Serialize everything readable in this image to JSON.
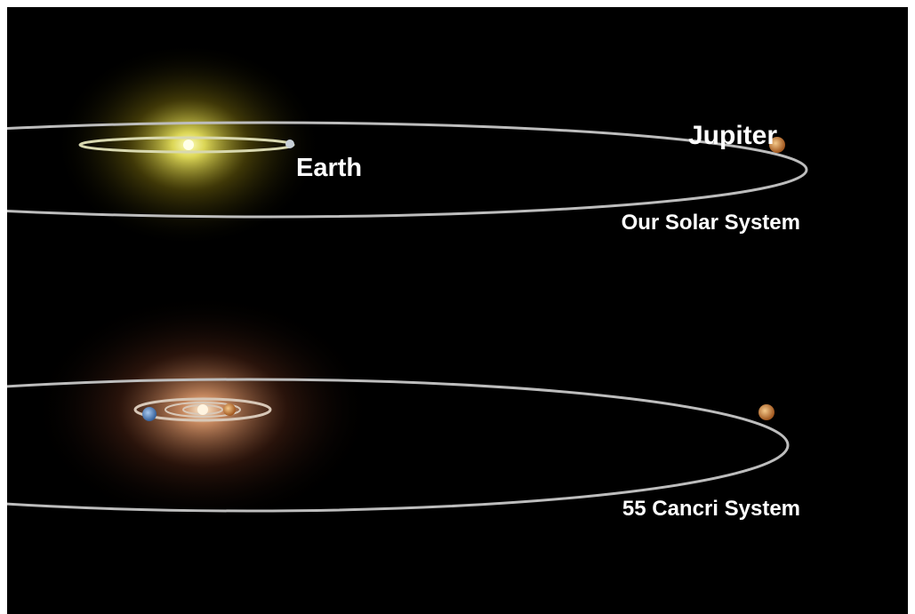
{
  "solar_system": {
    "label": "Our Solar System",
    "inner_planet": "Earth",
    "outer_planet": "Jupiter"
  },
  "cancri_system": {
    "label": "55 Cancri System"
  }
}
